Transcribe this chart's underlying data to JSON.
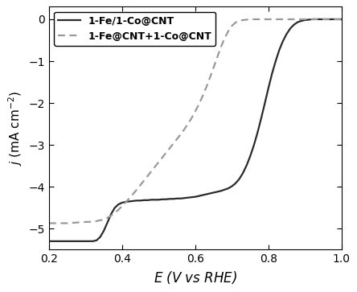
{
  "xlim": [
    0.2,
    1.0
  ],
  "ylim": [
    -5.5,
    0.3
  ],
  "xticks": [
    0.2,
    0.4,
    0.6,
    0.8,
    1.0
  ],
  "yticks": [
    0,
    -1,
    -2,
    -3,
    -4,
    -5
  ],
  "xlabel": "$E$ (V vs RHE)",
  "ylabel": "$j$ (mA cm$^{-2}$)",
  "line1_label": "1-Fe/1-Co@CNT",
  "line2_label": "1-Fe@CNT+1-Co@CNT",
  "line1_color": "#2a2a2a",
  "line2_color": "#999999",
  "background_color": "#ffffff",
  "solid_x": [
    0.2,
    0.21,
    0.22,
    0.23,
    0.24,
    0.25,
    0.26,
    0.27,
    0.28,
    0.29,
    0.3,
    0.31,
    0.32,
    0.33,
    0.34,
    0.35,
    0.36,
    0.37,
    0.38,
    0.39,
    0.4,
    0.41,
    0.42,
    0.43,
    0.44,
    0.45,
    0.46,
    0.47,
    0.48,
    0.49,
    0.5,
    0.51,
    0.52,
    0.53,
    0.54,
    0.55,
    0.56,
    0.57,
    0.58,
    0.59,
    0.6,
    0.61,
    0.62,
    0.63,
    0.64,
    0.65,
    0.66,
    0.67,
    0.68,
    0.69,
    0.7,
    0.71,
    0.72,
    0.73,
    0.74,
    0.75,
    0.76,
    0.77,
    0.78,
    0.79,
    0.8,
    0.81,
    0.82,
    0.83,
    0.84,
    0.85,
    0.86,
    0.87,
    0.88,
    0.89,
    0.9,
    0.91,
    0.92,
    0.93,
    0.94,
    0.95,
    0.96,
    0.97,
    0.98,
    0.99,
    1.0
  ],
  "solid_y": [
    -5.3,
    -5.3,
    -5.3,
    -5.3,
    -5.3,
    -5.3,
    -5.3,
    -5.3,
    -5.3,
    -5.3,
    -5.3,
    -5.3,
    -5.3,
    -5.28,
    -5.2,
    -5.05,
    -4.85,
    -4.65,
    -4.5,
    -4.42,
    -4.38,
    -4.36,
    -4.35,
    -4.34,
    -4.33,
    -4.33,
    -4.32,
    -4.32,
    -4.31,
    -4.31,
    -4.31,
    -4.3,
    -4.3,
    -4.29,
    -4.29,
    -4.28,
    -4.28,
    -4.27,
    -4.26,
    -4.25,
    -4.24,
    -4.22,
    -4.2,
    -4.18,
    -4.16,
    -4.14,
    -4.12,
    -4.1,
    -4.07,
    -4.04,
    -3.99,
    -3.92,
    -3.82,
    -3.68,
    -3.5,
    -3.28,
    -3.02,
    -2.72,
    -2.38,
    -2.02,
    -1.65,
    -1.3,
    -1.0,
    -0.73,
    -0.52,
    -0.35,
    -0.22,
    -0.13,
    -0.07,
    -0.04,
    -0.02,
    -0.01,
    -0.0,
    -0.0,
    -0.0,
    -0.0,
    -0.0,
    -0.0,
    -0.0,
    -0.0,
    -0.0
  ],
  "dashed_x": [
    0.2,
    0.21,
    0.22,
    0.23,
    0.24,
    0.25,
    0.26,
    0.27,
    0.28,
    0.29,
    0.3,
    0.31,
    0.32,
    0.33,
    0.34,
    0.35,
    0.36,
    0.37,
    0.38,
    0.39,
    0.4,
    0.41,
    0.42,
    0.43,
    0.44,
    0.45,
    0.46,
    0.47,
    0.48,
    0.49,
    0.5,
    0.51,
    0.52,
    0.53,
    0.54,
    0.55,
    0.56,
    0.57,
    0.58,
    0.59,
    0.6,
    0.61,
    0.62,
    0.63,
    0.64,
    0.65,
    0.66,
    0.67,
    0.68,
    0.69,
    0.7,
    0.71,
    0.72,
    0.73,
    0.74,
    0.75,
    0.76,
    0.77,
    0.78,
    0.79,
    0.8,
    0.81,
    0.82,
    0.83,
    0.84,
    0.85,
    0.86,
    0.87,
    0.88,
    0.89,
    0.9,
    0.91,
    0.92,
    0.93,
    0.94,
    0.95,
    0.96,
    0.97,
    0.98,
    0.99,
    1.0
  ],
  "dashed_y": [
    -4.87,
    -4.87,
    -4.87,
    -4.87,
    -4.87,
    -4.87,
    -4.86,
    -4.86,
    -4.85,
    -4.85,
    -4.84,
    -4.84,
    -4.83,
    -4.82,
    -4.8,
    -4.78,
    -4.74,
    -4.69,
    -4.62,
    -4.55,
    -4.46,
    -4.37,
    -4.27,
    -4.17,
    -4.07,
    -3.96,
    -3.85,
    -3.74,
    -3.63,
    -3.52,
    -3.41,
    -3.3,
    -3.19,
    -3.08,
    -2.97,
    -2.86,
    -2.75,
    -2.63,
    -2.5,
    -2.36,
    -2.2,
    -2.03,
    -1.84,
    -1.63,
    -1.4,
    -1.16,
    -0.91,
    -0.67,
    -0.46,
    -0.29,
    -0.16,
    -0.08,
    -0.04,
    -0.02,
    -0.01,
    -0.0,
    -0.0,
    -0.0,
    -0.0,
    -0.0,
    -0.0,
    -0.0,
    -0.0,
    -0.0,
    -0.0,
    -0.0,
    -0.0,
    -0.0,
    -0.0,
    -0.0,
    -0.0,
    -0.0,
    -0.0,
    -0.0,
    -0.0,
    -0.0,
    -0.0,
    -0.0,
    -0.0,
    -0.0,
    -0.0
  ]
}
